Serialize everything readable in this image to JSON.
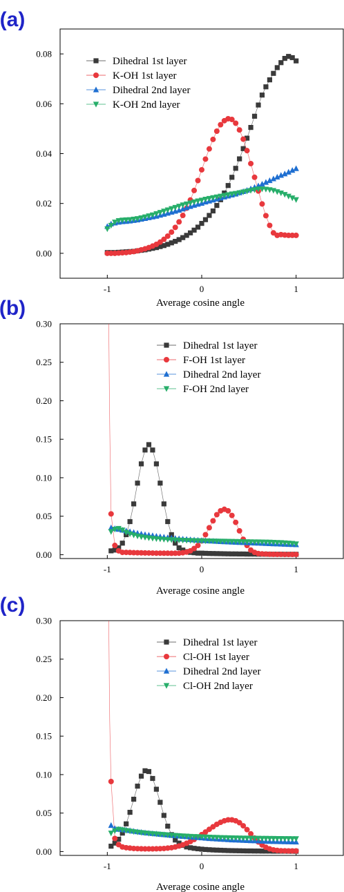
{
  "chart_data": [
    {
      "type": "scatter",
      "panel_label": "(a)",
      "xlabel": "Average cosine angle",
      "ylabel": "",
      "xlim": [
        -1.5,
        1.5
      ],
      "ylim": [
        -0.01,
        0.09
      ],
      "xticks": [
        -1,
        0,
        1
      ],
      "xtick_labels": [
        "-1",
        "0",
        "1"
      ],
      "yticks": [
        0.0,
        0.02,
        0.04,
        0.06,
        0.08
      ],
      "ytick_labels": [
        "0.00",
        "0.02",
        "0.04",
        "0.06",
        "0.08"
      ],
      "legend": "top-left",
      "x": [
        -1.0,
        -0.96,
        -0.92,
        -0.88,
        -0.84,
        -0.8,
        -0.76,
        -0.72,
        -0.68,
        -0.64,
        -0.6,
        -0.56,
        -0.52,
        -0.48,
        -0.44,
        -0.4,
        -0.36,
        -0.32,
        -0.28,
        -0.24,
        -0.2,
        -0.16,
        -0.12,
        -0.08,
        -0.04,
        0.0,
        0.04,
        0.08,
        0.12,
        0.16,
        0.2,
        0.24,
        0.28,
        0.32,
        0.36,
        0.4,
        0.44,
        0.48,
        0.52,
        0.56,
        0.6,
        0.64,
        0.68,
        0.72,
        0.76,
        0.8,
        0.84,
        0.88,
        0.92,
        0.96,
        1.0
      ],
      "series": [
        {
          "name": "Dihedral 1st layer",
          "marker": "square",
          "color": "#3a3a3a",
          "values": [
            0.0003,
            0.0003,
            0.0003,
            0.0004,
            0.0005,
            0.0006,
            0.0007,
            0.0008,
            0.001,
            0.0012,
            0.0014,
            0.0017,
            0.002,
            0.0023,
            0.0027,
            0.0031,
            0.0036,
            0.0042,
            0.0048,
            0.0055,
            0.0063,
            0.0072,
            0.0082,
            0.0093,
            0.0105,
            0.012,
            0.0135,
            0.0152,
            0.017,
            0.0192,
            0.0215,
            0.0242,
            0.0272,
            0.0305,
            0.0341,
            0.0379,
            0.042,
            0.0462,
            0.0505,
            0.055,
            0.0595,
            0.0635,
            0.0668,
            0.0696,
            0.0722,
            0.0745,
            0.0765,
            0.0782,
            0.079,
            0.0785,
            0.0772
          ]
        },
        {
          "name": "K-OH 1st layer",
          "marker": "circle",
          "color": "#e8383d",
          "values": [
            0.0,
            0.0,
            0.0,
            0.0001,
            0.0002,
            0.0003,
            0.0005,
            0.0007,
            0.001,
            0.0014,
            0.0018,
            0.0023,
            0.0029,
            0.0036,
            0.0045,
            0.0056,
            0.0069,
            0.0085,
            0.0104,
            0.0126,
            0.0152,
            0.0181,
            0.0214,
            0.0252,
            0.0292,
            0.0335,
            0.0378,
            0.0419,
            0.0457,
            0.049,
            0.0516,
            0.0532,
            0.054,
            0.0537,
            0.0522,
            0.0495,
            0.0458,
            0.0412,
            0.036,
            0.0305,
            0.025,
            0.0198,
            0.0151,
            0.0112,
            0.0082,
            0.0072,
            0.0075,
            0.0073,
            0.0072,
            0.0072,
            0.0072
          ]
        },
        {
          "name": "Dihedral 2nd layer",
          "marker": "triangle-up",
          "color": "#1f6fd1",
          "values": [
            0.0108,
            0.0118,
            0.0122,
            0.0125,
            0.0127,
            0.0128,
            0.013,
            0.0132,
            0.0134,
            0.0137,
            0.014,
            0.0143,
            0.0146,
            0.0149,
            0.0153,
            0.0157,
            0.0161,
            0.0165,
            0.0169,
            0.0173,
            0.0178,
            0.0183,
            0.0188,
            0.0193,
            0.0197,
            0.0201,
            0.0206,
            0.021,
            0.0214,
            0.0218,
            0.0222,
            0.0226,
            0.023,
            0.0234,
            0.0238,
            0.0243,
            0.0248,
            0.0253,
            0.0259,
            0.0265,
            0.0271,
            0.0278,
            0.0285,
            0.0292,
            0.0299,
            0.0306,
            0.0313,
            0.0319,
            0.0326,
            0.0333,
            0.034
          ]
        },
        {
          "name": "K-OH 2nd layer",
          "marker": "triangle-down",
          "color": "#27ae6a",
          "values": [
            0.0098,
            0.0112,
            0.0125,
            0.0131,
            0.0133,
            0.0134,
            0.0135,
            0.0137,
            0.0139,
            0.0142,
            0.0146,
            0.015,
            0.0154,
            0.0159,
            0.0164,
            0.0169,
            0.0174,
            0.0179,
            0.0184,
            0.0189,
            0.0194,
            0.0198,
            0.0202,
            0.0206,
            0.021,
            0.0213,
            0.0217,
            0.022,
            0.0223,
            0.0226,
            0.0229,
            0.0232,
            0.0235,
            0.0238,
            0.024,
            0.0243,
            0.0246,
            0.0249,
            0.0252,
            0.0255,
            0.0258,
            0.0258,
            0.0257,
            0.0255,
            0.0252,
            0.0247,
            0.0242,
            0.0236,
            0.0229,
            0.0222,
            0.0215
          ]
        }
      ]
    },
    {
      "type": "scatter",
      "panel_label": "(b)",
      "xlabel": "Average cosine angle",
      "ylabel": "",
      "xlim": [
        -1.5,
        1.5
      ],
      "ylim": [
        -0.005,
        0.3
      ],
      "xticks": [
        -1,
        0,
        1
      ],
      "xtick_labels": [
        "-1",
        "0",
        "1"
      ],
      "yticks": [
        0.0,
        0.05,
        0.1,
        0.15,
        0.2,
        0.25,
        0.3
      ],
      "ytick_labels": [
        "0.00",
        "0.05",
        "0.10",
        "0.15",
        "0.20",
        "0.25",
        "0.30"
      ],
      "legend": "top-right",
      "x": [
        -0.96,
        -0.92,
        -0.88,
        -0.84,
        -0.8,
        -0.76,
        -0.72,
        -0.68,
        -0.64,
        -0.6,
        -0.56,
        -0.52,
        -0.48,
        -0.44,
        -0.4,
        -0.36,
        -0.32,
        -0.28,
        -0.24,
        -0.2,
        -0.16,
        -0.12,
        -0.08,
        -0.04,
        0.0,
        0.04,
        0.08,
        0.12,
        0.16,
        0.2,
        0.24,
        0.28,
        0.32,
        0.36,
        0.4,
        0.44,
        0.48,
        0.52,
        0.56,
        0.6,
        0.64,
        0.68,
        0.72,
        0.76,
        0.8,
        0.84,
        0.88,
        0.92,
        0.96,
        1.0
      ],
      "series": [
        {
          "name": "Dihedral 1st layer",
          "marker": "square",
          "color": "#3a3a3a",
          "values": [
            0.005,
            0.006,
            0.009,
            0.015,
            0.026,
            0.043,
            0.066,
            0.093,
            0.118,
            0.136,
            0.143,
            0.136,
            0.118,
            0.093,
            0.066,
            0.043,
            0.026,
            0.015,
            0.009,
            0.006,
            0.004,
            0.003,
            0.0025,
            0.002,
            0.002,
            0.0018,
            0.0016,
            0.0015,
            0.0014,
            0.0013,
            0.0012,
            0.0011,
            0.001,
            0.001,
            0.0009,
            0.0009,
            0.0008,
            0.0008,
            0.0008,
            0.0007,
            0.0007,
            0.0007,
            0.0006,
            0.0006,
            0.0006,
            0.0006,
            0.0005,
            0.0005,
            0.0005,
            0.0005
          ]
        },
        {
          "name": "F-OH 1st layer",
          "marker": "circle",
          "color": "#e8383d",
          "values": [
            0.053,
            0.012,
            0.005,
            0.003,
            0.003,
            0.0028,
            0.0026,
            0.0025,
            0.0024,
            0.0023,
            0.0022,
            0.0021,
            0.002,
            0.002,
            0.0019,
            0.0019,
            0.0018,
            0.0019,
            0.002,
            0.0025,
            0.0034,
            0.005,
            0.008,
            0.012,
            0.018,
            0.026,
            0.035,
            0.044,
            0.052,
            0.057,
            0.059,
            0.057,
            0.051,
            0.042,
            0.031,
            0.02,
            0.012,
            0.006,
            0.003,
            0.0015,
            0.001,
            0.0008,
            0.0006,
            0.0005,
            0.0004,
            0.0004,
            0.0003,
            0.0003,
            0.0003,
            0.0003
          ]
        },
        {
          "name": "Dihedral 2nd layer",
          "marker": "triangle-up",
          "color": "#1f6fd1",
          "values": [
            0.035,
            0.034,
            0.033,
            0.032,
            0.031,
            0.03,
            0.029,
            0.028,
            0.027,
            0.0262,
            0.0255,
            0.0248,
            0.0241,
            0.0235,
            0.0229,
            0.0223,
            0.0218,
            0.0213,
            0.0208,
            0.0204,
            0.02,
            0.0196,
            0.0192,
            0.0189,
            0.0186,
            0.0183,
            0.018,
            0.0177,
            0.0174,
            0.0171,
            0.0168,
            0.0166,
            0.0164,
            0.0162,
            0.016,
            0.0158,
            0.0156,
            0.0154,
            0.0152,
            0.015,
            0.0148,
            0.0146,
            0.0144,
            0.0142,
            0.014,
            0.0138,
            0.0136,
            0.0134,
            0.0132,
            0.013
          ]
        },
        {
          "name": "F-OH 2nd layer",
          "marker": "triangle-down",
          "color": "#27ae6a",
          "values": [
            0.03,
            0.033,
            0.034,
            0.032,
            0.029,
            0.027,
            0.0255,
            0.0242,
            0.0232,
            0.0224,
            0.0218,
            0.0212,
            0.0207,
            0.0203,
            0.0199,
            0.0196,
            0.0193,
            0.0191,
            0.0189,
            0.0187,
            0.0185,
            0.0184,
            0.0182,
            0.0181,
            0.018,
            0.0179,
            0.0178,
            0.0177,
            0.0176,
            0.0175,
            0.0174,
            0.0173,
            0.0172,
            0.0171,
            0.017,
            0.0169,
            0.0168,
            0.0167,
            0.0166,
            0.0165,
            0.0164,
            0.0163,
            0.0162,
            0.016,
            0.0158,
            0.0156,
            0.0153,
            0.015,
            0.0146,
            0.014
          ]
        }
      ]
    },
    {
      "type": "scatter",
      "panel_label": "(c)",
      "xlabel": "Average cosine angle",
      "ylabel": "",
      "xlim": [
        -1.5,
        1.5
      ],
      "ylim": [
        -0.005,
        0.3
      ],
      "xticks": [
        -1,
        0,
        1
      ],
      "xtick_labels": [
        "-1",
        "0",
        "1"
      ],
      "yticks": [
        0.0,
        0.05,
        0.1,
        0.15,
        0.2,
        0.25,
        0.3
      ],
      "ytick_labels": [
        "0.00",
        "0.05",
        "0.10",
        "0.15",
        "0.20",
        "0.25",
        "0.30"
      ],
      "legend": "top-right",
      "x": [
        -0.96,
        -0.92,
        -0.88,
        -0.84,
        -0.8,
        -0.76,
        -0.72,
        -0.68,
        -0.64,
        -0.6,
        -0.56,
        -0.52,
        -0.48,
        -0.44,
        -0.4,
        -0.36,
        -0.32,
        -0.28,
        -0.24,
        -0.2,
        -0.16,
        -0.12,
        -0.08,
        -0.04,
        0.0,
        0.04,
        0.08,
        0.12,
        0.16,
        0.2,
        0.24,
        0.28,
        0.32,
        0.36,
        0.4,
        0.44,
        0.48,
        0.52,
        0.56,
        0.6,
        0.64,
        0.68,
        0.72,
        0.76,
        0.8,
        0.84,
        0.88,
        0.92,
        0.96,
        1.0
      ],
      "series": [
        {
          "name": "Dihedral 1st layer",
          "marker": "square",
          "color": "#3a3a3a",
          "values": [
            0.007,
            0.011,
            0.016,
            0.024,
            0.036,
            0.051,
            0.068,
            0.085,
            0.098,
            0.105,
            0.104,
            0.095,
            0.081,
            0.064,
            0.047,
            0.033,
            0.022,
            0.015,
            0.011,
            0.008,
            0.006,
            0.005,
            0.0042,
            0.0036,
            0.0031,
            0.0027,
            0.0024,
            0.0021,
            0.0019,
            0.0017,
            0.0015,
            0.0013,
            0.0012,
            0.0011,
            0.001,
            0.0009,
            0.0008,
            0.0008,
            0.0007,
            0.0007,
            0.0006,
            0.0006,
            0.0006,
            0.0005,
            0.0005,
            0.0005,
            0.0005,
            0.0004,
            0.0004,
            0.0004
          ]
        },
        {
          "name": "Cl-OH 1st layer",
          "marker": "circle",
          "color": "#e8383d",
          "values": [
            0.091,
            0.017,
            0.009,
            0.006,
            0.005,
            0.0045,
            0.004,
            0.0038,
            0.0036,
            0.0035,
            0.0035,
            0.0035,
            0.0036,
            0.0038,
            0.004,
            0.0045,
            0.005,
            0.006,
            0.0072,
            0.0088,
            0.0108,
            0.013,
            0.0157,
            0.0188,
            0.022,
            0.0254,
            0.0289,
            0.0322,
            0.0354,
            0.038,
            0.04,
            0.0412,
            0.0412,
            0.04,
            0.0375,
            0.0335,
            0.0285,
            0.023,
            0.0175,
            0.0125,
            0.0085,
            0.0055,
            0.0035,
            0.0022,
            0.0015,
            0.0011,
            0.0009,
            0.0008,
            0.0008,
            0.0008
          ]
        },
        {
          "name": "Dihedral 2nd layer",
          "marker": "triangle-up",
          "color": "#1f6fd1",
          "values": [
            0.034,
            0.03,
            0.029,
            0.0285,
            0.028,
            0.0273,
            0.0265,
            0.0258,
            0.0251,
            0.0245,
            0.024,
            0.0235,
            0.023,
            0.0225,
            0.022,
            0.0215,
            0.021,
            0.0206,
            0.0202,
            0.0198,
            0.0194,
            0.019,
            0.0186,
            0.0182,
            0.0178,
            0.0174,
            0.017,
            0.0167,
            0.0164,
            0.0161,
            0.0158,
            0.0155,
            0.0152,
            0.015,
            0.0148,
            0.0146,
            0.0144,
            0.0142,
            0.014,
            0.0138,
            0.0136,
            0.0134,
            0.0132,
            0.0131,
            0.013,
            0.0129,
            0.0128,
            0.0127,
            0.0126,
            0.0125
          ]
        },
        {
          "name": "Cl-OH 2nd layer",
          "marker": "triangle-down",
          "color": "#27ae6a",
          "values": [
            0.024,
            0.027,
            0.029,
            0.0282,
            0.0273,
            0.0265,
            0.0258,
            0.0252,
            0.0246,
            0.0241,
            0.0236,
            0.0232,
            0.0228,
            0.0224,
            0.022,
            0.0216,
            0.0212,
            0.0209,
            0.0206,
            0.0203,
            0.02,
            0.0197,
            0.0195,
            0.0193,
            0.0191,
            0.0189,
            0.0187,
            0.0185,
            0.0183,
            0.0181,
            0.018,
            0.0179,
            0.0178,
            0.0177,
            0.0176,
            0.0175,
            0.0174,
            0.0173,
            0.0172,
            0.0172,
            0.0171,
            0.0171,
            0.017,
            0.017,
            0.0169,
            0.0169,
            0.0168,
            0.0168,
            0.0167,
            0.0167
          ]
        }
      ]
    }
  ]
}
